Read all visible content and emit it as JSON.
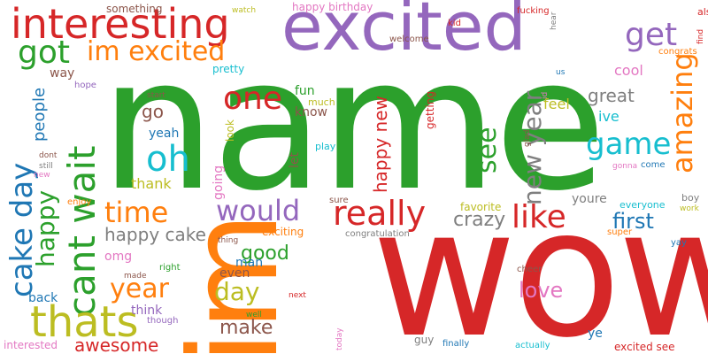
{
  "palette": {
    "green": "#2ca02c",
    "purple": "#9467bd",
    "red": "#d62728",
    "orange": "#ff7f0e",
    "blue": "#1f77b4",
    "olive": "#bcbd22",
    "cyan": "#17becf",
    "brown": "#8c564b",
    "pink": "#e377c2",
    "gray": "#7f7f7f"
  },
  "words": {
    "name": "name",
    "wow": "wow",
    "im": "im",
    "excited": "excited",
    "interesting": "interesting",
    "im_excited": "im excited",
    "got": "got",
    "get": "get",
    "cant_wait": "cant wait",
    "cake_day": "cake day",
    "happy": "happy",
    "thats": "thats",
    "oh": "oh",
    "one": "one",
    "game": "game",
    "like": "like",
    "really": "really",
    "would": "would",
    "time": "time",
    "year": "year",
    "day": "day",
    "amazing": "amazing",
    "new_year": "new year",
    "happy_new": "happy new",
    "see": "see",
    "first": "first",
    "love": "love",
    "make": "make",
    "good": "good",
    "happy_cake": "happy cake",
    "awesome": "awesome",
    "people": "people",
    "go": "go",
    "thank": "thank",
    "yeah": "yeah",
    "fun": "fun",
    "much": "much",
    "know": "know",
    "let": "let",
    "play": "play",
    "going": "going",
    "look": "look",
    "feel": "feel",
    "cool": "cool",
    "ive": "ive",
    "great": "great",
    "crazy": "crazy",
    "youre": "youre",
    "everyone": "everyone",
    "boy": "boy",
    "work": "work",
    "happy_birthday": "happy birthday",
    "something": "something",
    "watch": "watch",
    "kid": "kid",
    "fucking": "fucking",
    "also": "also",
    "find": "find",
    "congrats": "congrats",
    "us": "us",
    "welcome": "welcome",
    "hear": "hear",
    "way": "way",
    "hope": "hope",
    "pretty": "pretty",
    "start": "start",
    "getting": "getting",
    "glad": "glad",
    "id": "id",
    "gonna": "gonna",
    "come": "come",
    "dont": "dont",
    "still": "still",
    "new": "new",
    "enjoy": "enjoy",
    "favorite": "favorite",
    "sure": "sure",
    "congratulation": "congratulation",
    "exciting": "exciting",
    "thing": "thing",
    "super": "super",
    "yay": "yay",
    "omg": "omg",
    "right": "right",
    "man": "man",
    "made": "made",
    "even": "even",
    "back": "back",
    "think": "think",
    "though": "though",
    "well": "well",
    "next": "next",
    "cheer": "cheer",
    "interested": "interested",
    "today": "today",
    "guy": "guy",
    "finally": "finally",
    "actually": "actually",
    "ye": "ye",
    "excited_see": "excited see"
  }
}
